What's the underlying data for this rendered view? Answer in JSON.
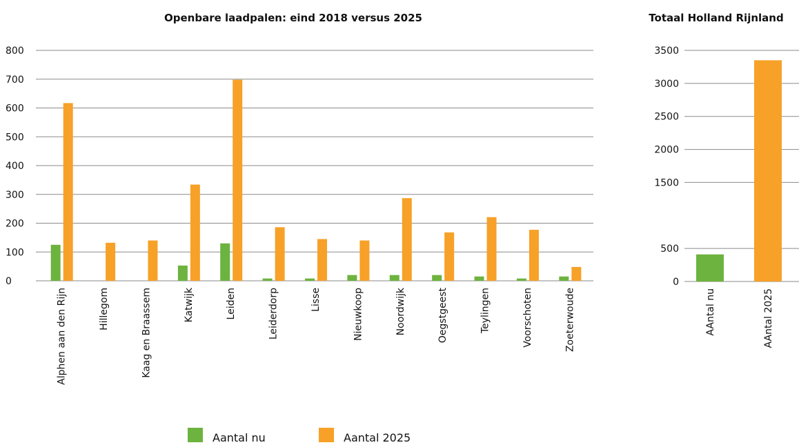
{
  "chart_data": [
    {
      "type": "bar",
      "title": "Openbare laadpalen: eind 2018 versus 2025",
      "categories": [
        "Alphen aan den Rijn",
        "Hillegom",
        "Kaag en Braassem",
        "Katwijk",
        "Leiden",
        "Leiderdorp",
        "Lisse",
        "Nieuwkoop",
        "Noordwijk",
        "Oegstgeest",
        "Teylingen",
        "Voorschoten",
        "Zoeterwoude"
      ],
      "series": [
        {
          "name": "Aantal nu",
          "values": [
            125,
            0,
            0,
            53,
            130,
            8,
            8,
            20,
            20,
            20,
            15,
            8,
            15
          ]
        },
        {
          "name": "Aantal 2025",
          "values": [
            617,
            132,
            140,
            334,
            698,
            186,
            145,
            140,
            287,
            168,
            221,
            177,
            48
          ]
        }
      ],
      "ylim": [
        0,
        800
      ],
      "yticks": [
        0,
        100,
        200,
        300,
        400,
        500,
        600,
        700,
        800
      ],
      "grid": true,
      "legend": "bottom"
    },
    {
      "type": "bar",
      "title": "Totaal Holland Rijnland",
      "categories": [
        "AAntal nu",
        "AAntal 2025"
      ],
      "values": [
        410,
        3350
      ],
      "ylim": [
        0,
        3500
      ],
      "yticks": [
        0,
        500,
        1500,
        2000,
        2500,
        3000,
        3500
      ],
      "grid": true
    }
  ],
  "legend": [
    {
      "label": "Aantal nu",
      "color": "#6db33f"
    },
    {
      "label": "Aantal 2025",
      "color": "#f7a128"
    }
  ],
  "colors": {
    "now": "#6db33f",
    "future": "#f7a128"
  }
}
